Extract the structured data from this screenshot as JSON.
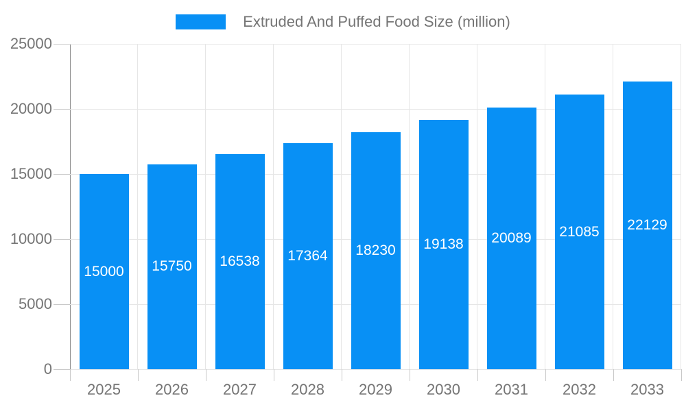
{
  "chart_data": {
    "type": "bar",
    "title": "Extruded And Puffed Food Size (million)",
    "categories": [
      "2025",
      "2026",
      "2027",
      "2028",
      "2029",
      "2030",
      "2031",
      "2032",
      "2033"
    ],
    "values": [
      15000,
      15750,
      16538,
      17364,
      18230,
      19138,
      20089,
      21085,
      22129
    ],
    "value_labels": [
      "15000",
      "15750",
      "16538",
      "17364",
      "18230",
      "19138",
      "20089",
      "21085",
      "22129"
    ],
    "xlabel": "",
    "ylabel": "",
    "ylim": [
      0,
      25000
    ],
    "yticks": [
      0,
      5000,
      10000,
      15000,
      20000,
      25000
    ],
    "ytick_labels": [
      "0",
      "5000",
      "10000",
      "15000",
      "20000",
      "25000"
    ],
    "grid": "horizontal and vertical category boundaries",
    "legend_position": "top-center",
    "colors": {
      "bar": "#0890f5",
      "grid_line": "#e6e6e6",
      "axis_line": "#8c8c8c",
      "tick_line": "#c9c9c9",
      "axis_text": "#757575",
      "value_label_text": "#ffffff",
      "background": "#ffffff"
    }
  }
}
